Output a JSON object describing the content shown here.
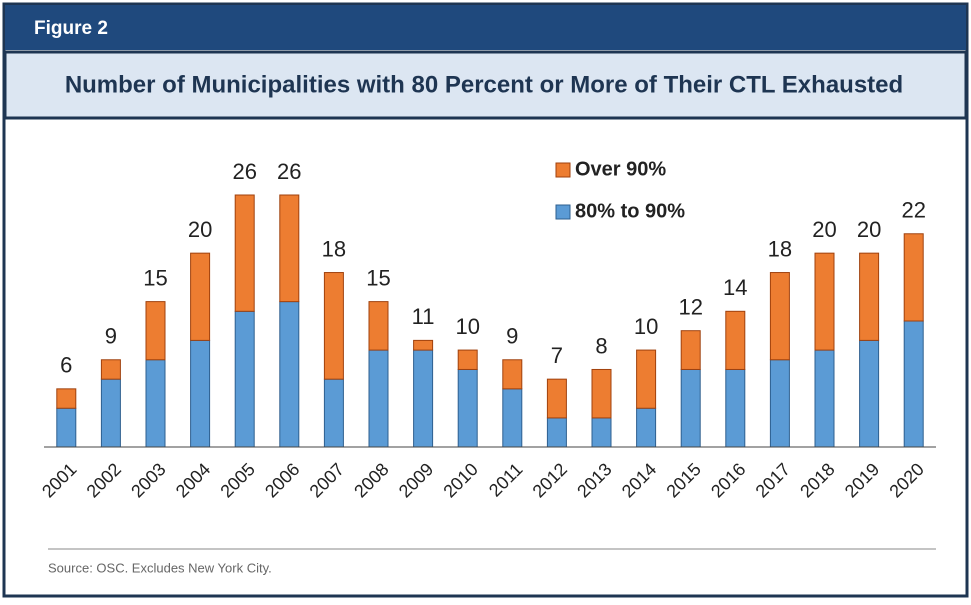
{
  "figure_label": "Figure 2",
  "chart_data": {
    "type": "stacked_bar",
    "title": "Number of Municipalities with 80 Percent or More of Their CTL Exhausted",
    "source": "Source: OSC. Excludes New York City.",
    "categories": [
      "2001",
      "2002",
      "2003",
      "2004",
      "2005",
      "2006",
      "2007",
      "2008",
      "2009",
      "2010",
      "2011",
      "2012",
      "2013",
      "2014",
      "2015",
      "2016",
      "2017",
      "2018",
      "2019",
      "2020"
    ],
    "series": [
      {
        "name": "80% to 90%",
        "color": "#5b9bd5",
        "values": [
          4,
          7,
          9,
          11,
          14,
          15,
          7,
          10,
          10,
          8,
          6,
          3,
          3,
          4,
          8,
          8,
          9,
          10,
          11,
          13
        ]
      },
      {
        "name": "Over 90%",
        "color": "#ed7d31",
        "values": [
          2,
          2,
          6,
          9,
          12,
          11,
          11,
          5,
          1,
          2,
          3,
          4,
          5,
          6,
          4,
          6,
          9,
          10,
          9,
          9
        ]
      }
    ],
    "totals": [
      6,
      9,
      15,
      20,
      26,
      26,
      18,
      15,
      11,
      10,
      9,
      7,
      8,
      10,
      12,
      14,
      18,
      20,
      20,
      22
    ],
    "ylim": [
      0,
      26
    ]
  }
}
